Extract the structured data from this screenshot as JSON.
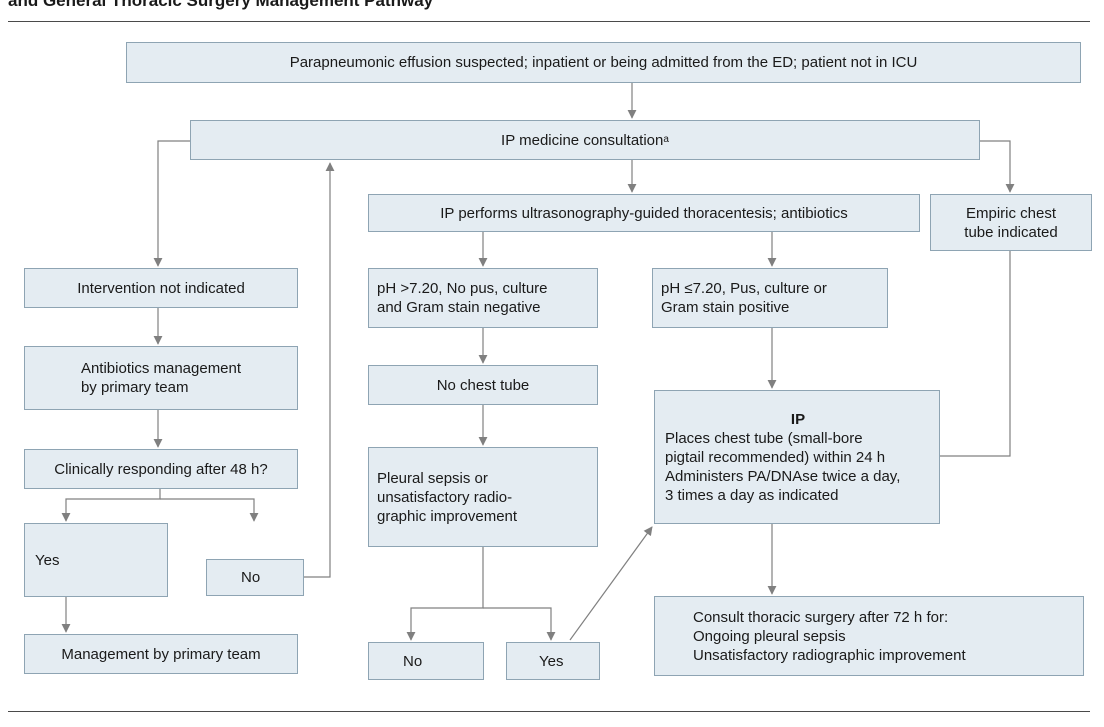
{
  "header": {
    "title": "and General Thoracic Surgery Management Pathway"
  },
  "nodes": {
    "suspected": "Parapneumonic effusion suspected; inpatient or being admitted from the ED; patient not in ICU",
    "ip_consult": "IP medicine consultation",
    "ip_consult_footnote": "a",
    "ultrasound": "IP performs ultrasonography-guided thoracentesis; antibiotics",
    "empiric": "Empiric chest\ntube indicated",
    "not_indicated": "Intervention not indicated",
    "antibiotics": "Antibiotics management\nby primary team",
    "clinically": "Clinically responding after 48 h?",
    "yes_left": "Yes",
    "no_left": "No",
    "mgmt_primary": "Management by primary team",
    "ph_high": "pH >7.20, No pus, culture\nand Gram stain negative",
    "ph_low": "pH ≤7.20, Pus, culture or\nGram stain positive",
    "no_chest_tube": "No chest tube",
    "pleural_sepsis": "Pleural sepsis or\nunsatisfactory radio-\ngraphic improvement",
    "no_bottom": "No",
    "yes_bottom": "Yes",
    "ip_title": "IP",
    "ip_body": "Places chest tube (small-bore\n  pigtail recommended) within 24 h\nAdministers PA/DNAse twice a day,\n  3 times a day as indicated",
    "consult": "Consult thoracic surgery after 72 h for:\n  Ongoing pleural sepsis\n  Unsatisfactory radiographic improvement"
  },
  "colors": {
    "box_fill": "#e4ecf2",
    "box_border": "#8ea4b3",
    "connector": "#808080",
    "rule": "#4a4a4a"
  }
}
